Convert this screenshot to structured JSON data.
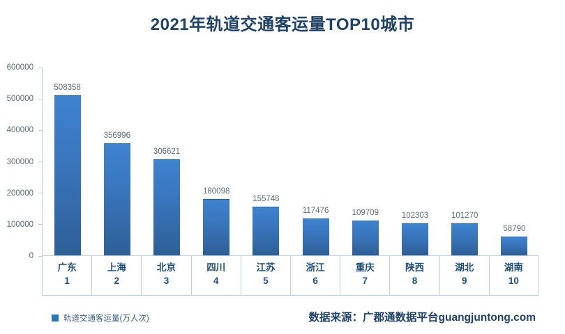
{
  "title": "2021年轨道交通客运量TOP10城市",
  "legend": {
    "label": "轨道交通客运量(万人次)"
  },
  "source": {
    "label": "数据来源：广郡通数据平台guangjuntong.com"
  },
  "colors": {
    "title": "#1F4266",
    "category_label": "#1F4E79",
    "value_label": "#5A6B7A",
    "axis_line": "#BCCFE2",
    "bar_gradient_top": "#3E82CF",
    "bar_gradient_bottom": "#2E5F96",
    "legend_marker": "#2E75B6"
  },
  "chart_data": {
    "type": "bar",
    "title": "2021年轨道交通客运量TOP10城市",
    "series_name": "轨道交通客运量(万人次)",
    "categories": [
      "广东",
      "上海",
      "北京",
      "四川",
      "江苏",
      "浙江",
      "重庆",
      "陕西",
      "湖北",
      "湖南"
    ],
    "ranks": [
      "1",
      "2",
      "3",
      "4",
      "5",
      "6",
      "7",
      "8",
      "9",
      "10"
    ],
    "values": [
      508358,
      356996,
      306621,
      180098,
      155748,
      117476,
      109709,
      102303,
      101270,
      58790
    ],
    "xlabel": "",
    "ylabel": "",
    "ylim": [
      0,
      600000
    ],
    "yticks": [
      0,
      100000,
      200000,
      300000,
      400000,
      500000,
      600000
    ],
    "grid": false,
    "data_labels": true,
    "legend_position": "bottom-left"
  }
}
